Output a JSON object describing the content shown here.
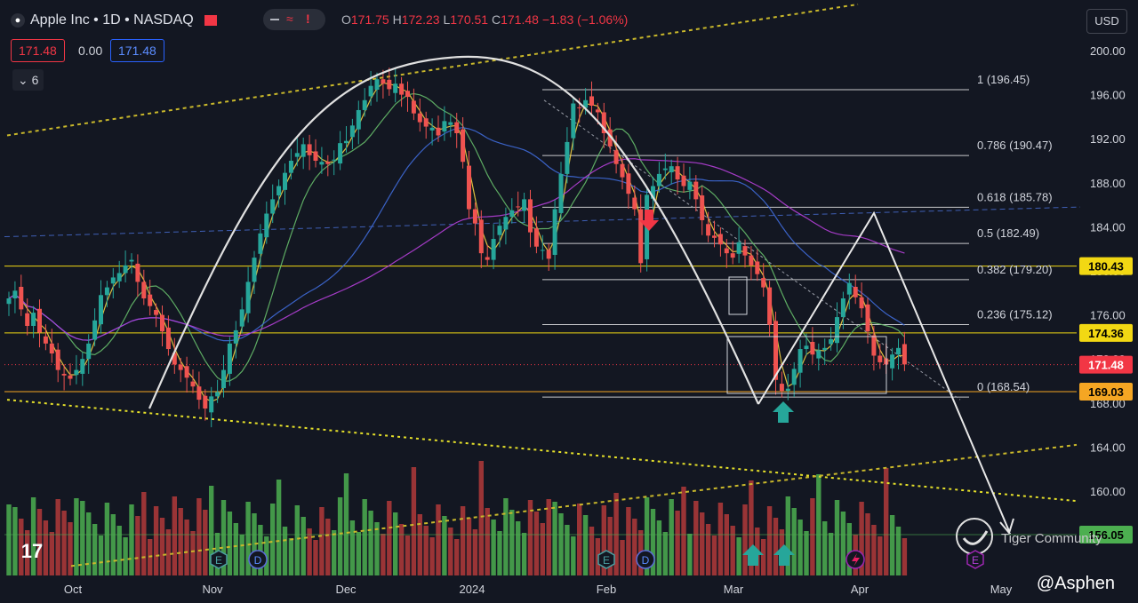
{
  "header": {
    "symbol": "Apple Inc • 1D • NASDAQ",
    "open_label": "O",
    "open": "171.75",
    "high_label": "H",
    "high": "172.23",
    "low_label": "L",
    "low": "170.51",
    "close_label": "C",
    "close": "171.48",
    "change": "−1.83 (−1.06%)"
  },
  "toolbar": {
    "sell_price": "171.48",
    "spread": "0.00",
    "buy_price": "171.48",
    "indicators_count": "6",
    "currency": "USD"
  },
  "watermark": "@Asphen",
  "tiger_label": "Tiger Community",
  "colors": {
    "background": "#131722",
    "up": "#26a69a",
    "down": "#ef5350",
    "volume_up": "#4caf50",
    "volume_down": "#b33a3a",
    "ma_fast": "#f5d142",
    "ma_mid": "#66bb6a",
    "ma_slow": "#3f6ad8",
    "ma_long": "#b53fd8",
    "level_line": "#f2d813",
    "level_orange": "#f5a623"
  },
  "chart_data": {
    "type": "candlestick",
    "title": "Apple Inc • 1D • NASDAQ",
    "ylim": [
      156,
      202
    ],
    "y_ticks": [
      "200.00",
      "196.00",
      "192.00",
      "188.00",
      "184.00",
      "180.00",
      "176.00",
      "172.00",
      "168.00",
      "164.00",
      "160.00",
      "156.00"
    ],
    "x_ticks": [
      "Oct",
      "Nov",
      "Dec",
      "2024",
      "Feb",
      "Mar",
      "Apr",
      "May"
    ],
    "price_labels": [
      {
        "value": 180.43,
        "text": "180.43",
        "color": "#f2d813",
        "text_color": "#000000"
      },
      {
        "value": 174.36,
        "text": "174.36",
        "color": "#f2d813",
        "text_color": "#000000"
      },
      {
        "value": 171.48,
        "text": "171.48",
        "color": "#f23645",
        "text_color": "#ffffff"
      },
      {
        "value": 169.03,
        "text": "169.03",
        "color": "#f5a623",
        "text_color": "#000000"
      },
      {
        "value": 156.05,
        "text": "156.05",
        "color": "#4caf50",
        "text_color": "#000000"
      }
    ],
    "fib_levels": [
      {
        "value": 196.45,
        "label": "1 (196.45)"
      },
      {
        "value": 190.47,
        "label": "0.786 (190.47)"
      },
      {
        "value": 185.78,
        "label": "0.618 (185.78)"
      },
      {
        "value": 182.49,
        "label": "0.5 (182.49)"
      },
      {
        "value": 179.2,
        "label": "0.382 (179.20)"
      },
      {
        "value": 175.12,
        "label": "0.236 (175.12)"
      },
      {
        "value": 168.54,
        "label": "0 (168.54)"
      }
    ],
    "ohlc_close": [
      177.5,
      178.2,
      176.5,
      175,
      176.2,
      174.4,
      173.4,
      172.5,
      171,
      170.5,
      170.2,
      171,
      172,
      173.4,
      175.5,
      177.8,
      178.5,
      179.4,
      179.8,
      180.5,
      181,
      179,
      177.5,
      176.8,
      176,
      174.5,
      172.9,
      171.5,
      171,
      170.3,
      169.5,
      168.3,
      167.5,
      168.6,
      169,
      171,
      173.4,
      174.6,
      176.5,
      179,
      181.2,
      183.4,
      185.2,
      186.5,
      187.7,
      188.9,
      190,
      190.7,
      191.5,
      190.5,
      190,
      189.9,
      189.7,
      190.1,
      191.6,
      191.8,
      193.2,
      194.6,
      195.5,
      196.8,
      197.4,
      197,
      196.5,
      197,
      196,
      195.8,
      194.3,
      193.5,
      193.1,
      193,
      192.3,
      193.6,
      193.5,
      192.5,
      189.9,
      185.6,
      184.3,
      181.6,
      181,
      182.9,
      184.1,
      184.9,
      185.5,
      185.8,
      186.5,
      183.5,
      182.2,
      181.9,
      181.1,
      185.6,
      188.8,
      191.7,
      195.2,
      194.8,
      195.5,
      195,
      194.4,
      192.5,
      191.3,
      189.7,
      188.5,
      187,
      185.6,
      180.7,
      186.9,
      187.7,
      188.8,
      189.3,
      189.5,
      188.3,
      187.7,
      188.1,
      186.5,
      184.6,
      183.2,
      183,
      182.4,
      181.6,
      181.2,
      182.6,
      181.4,
      180.5,
      179.7,
      178.5,
      175.1,
      170.1,
      169.1,
      169.3,
      171.1,
      172.9,
      173.2,
      172.4,
      172.8,
      173,
      173.8,
      175.8,
      177.5,
      178.9,
      177.6,
      176.6,
      174.5,
      172.3,
      171.7,
      171.5,
      172.4,
      173,
      171.5
    ],
    "indicators": [
      "MA fast (yellow)",
      "MA mid (green)",
      "MA slow (blue)",
      "MA long (purple)"
    ],
    "annotations": [
      "Tiger Community",
      "@Asphen"
    ]
  }
}
